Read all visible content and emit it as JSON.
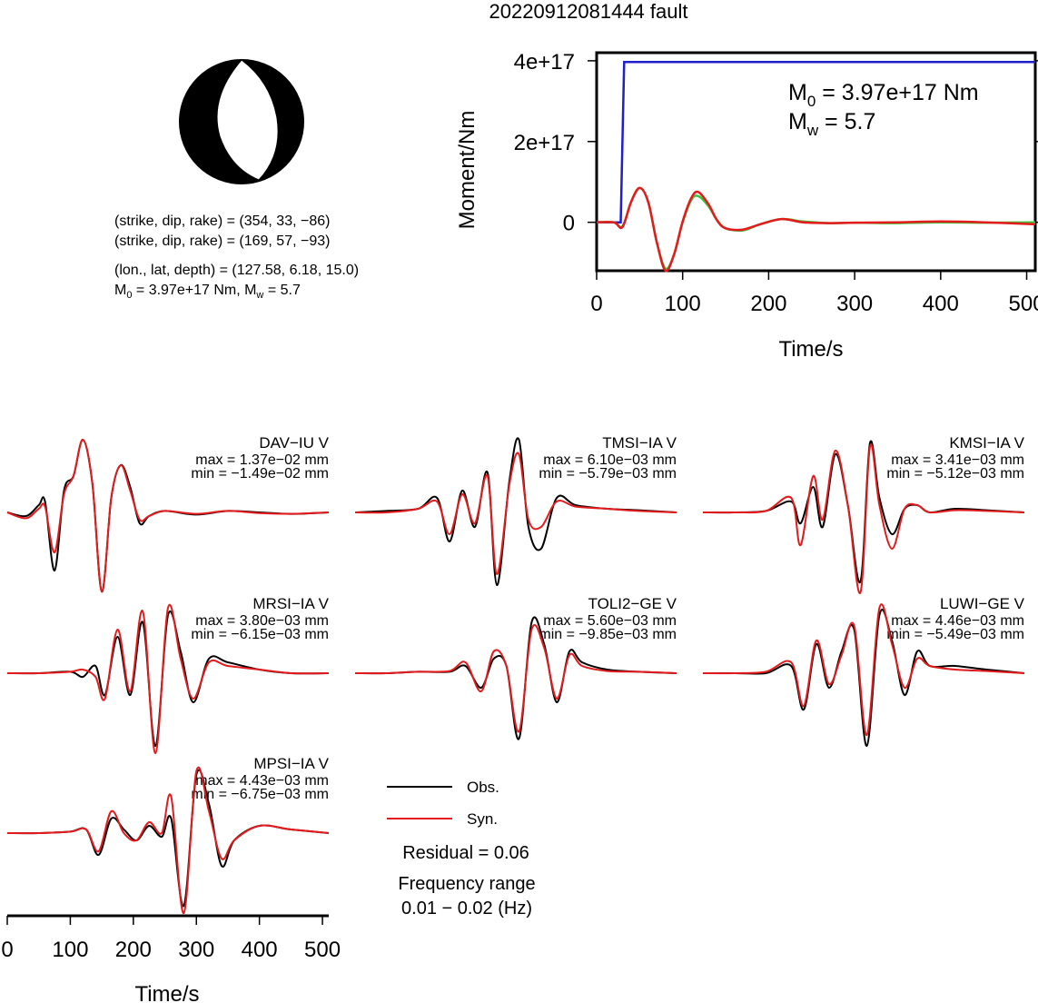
{
  "title": "20220912081444 fault",
  "colors": {
    "observed": "#000000",
    "synthetic": "#e41a1c",
    "moment_curve": "#1f1fcc",
    "moment_rate_green": "#3cc43c",
    "beachball": "#000000"
  },
  "focal_mechanism": {
    "plane1": "(strike, dip, rake) = (354, 33, −86)",
    "plane2": "(strike, dip, rake) = (169, 57, −93)",
    "location": "(lon., lat, depth) = (127.58, 6.18, 15.0)",
    "moment_prefix": "M",
    "moment_value": " = 3.97e+17 Nm, M",
    "moment_suffix": " = 5.7",
    "sub0": "0",
    "subw": "w"
  },
  "source_time_function": {
    "ylabel": "Moment/Nm",
    "xlabel": "Time/s",
    "m0_prefix": "M",
    "m0_sub": "0",
    "m0_text": " = 3.97e+17 Nm",
    "mw_prefix": "M",
    "mw_sub": "w",
    "mw_text": " = 5.7"
  },
  "waveforms_xlabel": "Time/s",
  "legend": {
    "obs_label": "Obs.",
    "syn_label": "Syn.",
    "residual": "Residual = 0.06",
    "freq_title": "Frequency range",
    "freq_range": "0.01 − 0.02 (Hz)"
  },
  "chart_data": [
    {
      "type": "line",
      "name": "source-time-function",
      "xlabel": "Time/s",
      "ylabel": "Moment/Nm",
      "xlim": [
        0,
        510
      ],
      "ylim": [
        -1.2e+17,
        4.2e+17
      ],
      "xticks": [
        0,
        100,
        200,
        300,
        400,
        500
      ],
      "yticks": [
        0,
        2e+17,
        4e+17
      ],
      "ytick_labels": [
        "0",
        "2e+17",
        "4e+17"
      ],
      "series": [
        {
          "x": [
            0,
            28,
            32,
            510
          ],
          "y": [
            0,
            0,
            3.97e+17,
            3.97e+17
          ]
        },
        {
          "x": [
            0,
            20,
            30,
            40,
            50,
            60,
            70,
            80,
            90,
            100,
            110,
            118,
            130,
            140,
            150,
            170,
            190,
            215,
            240,
            270,
            300,
            350,
            400,
            450,
            510
          ],
          "y": [
            0,
            0,
            -1e+16,
            5e+16,
            8.5e+16,
            5e+16,
            -5e+16,
            -1.15e+17,
            -8e+16,
            0.0,
            5.5e+16,
            6.5e+16,
            4e+16,
            5000000000000000.0,
            -1.5e+16,
            -2e+16,
            -5000000000000000.0,
            8000000000000000.0,
            2000000000000000.0,
            -2000000000000000.0,
            -1000000000000000.0,
            -2000000000000000.0,
            0.0,
            -1000000000000000.0,
            0.0
          ]
        },
        {
          "x": [
            0,
            20,
            30,
            40,
            50,
            60,
            70,
            80,
            90,
            100,
            110,
            118,
            130,
            140,
            150,
            170,
            190,
            215,
            240,
            270,
            300,
            350,
            400,
            450,
            510
          ],
          "y": [
            0,
            0,
            -1.2e+16,
            5e+16,
            8.5e+16,
            5e+16,
            -5e+16,
            -1.2e+17,
            -8e+16,
            2000000000000000.0,
            6e+16,
            7.5e+16,
            4.5e+16,
            5000000000000000.0,
            -1.5e+16,
            -1.8e+16,
            -5000000000000000.0,
            8000000000000000.0,
            0.0,
            -2000000000000000.0,
            -1000000000000000.0,
            0.0,
            2000000000000000.0,
            0.0,
            -5000000000000000.0
          ]
        }
      ]
    },
    {
      "type": "line",
      "name": "waveform-fits",
      "xlabel": "Time/s",
      "xlim": [
        0,
        510
      ],
      "xticks": [
        0,
        100,
        200,
        300,
        400,
        500
      ],
      "stations": [
        {
          "name": "DAV−IU V",
          "max": "max = 1.37e−02 mm",
          "min": "min = −1.49e−02 mm",
          "t": [
            0,
            30,
            50,
            60,
            75,
            90,
            105,
            120,
            135,
            150,
            165,
            180,
            195,
            210,
            225,
            250,
            300,
            350,
            400,
            450,
            510
          ],
          "obs": [
            0,
            -0.05,
            0.1,
            0.15,
            -0.8,
            0.3,
            0.5,
            1.0,
            0.4,
            -1.09,
            0.2,
            0.65,
            0.35,
            -0.15,
            -0.05,
            0.02,
            -0.03,
            0.02,
            0.0,
            -0.02,
            0.0
          ],
          "syn": [
            0,
            -0.08,
            0.05,
            0.08,
            -0.55,
            0.25,
            0.5,
            1.0,
            0.4,
            -1.09,
            0.2,
            0.65,
            0.3,
            -0.1,
            -0.05,
            0.02,
            -0.02,
            0.02,
            -0.01,
            -0.02,
            0.0
          ]
        },
        {
          "name": "TMSI−IA V",
          "max": "max = 6.10e−03 mm",
          "min": "min = −5.79e−03 mm",
          "t": [
            0,
            50,
            100,
            130,
            150,
            170,
            190,
            210,
            225,
            245,
            260,
            275,
            295,
            320,
            350,
            400,
            450,
            510
          ],
          "obs": [
            0,
            0.02,
            0.05,
            0.2,
            -0.4,
            0.3,
            -0.2,
            0.55,
            -1.0,
            0.45,
            1.0,
            -0.2,
            -0.5,
            0.2,
            0.1,
            0.05,
            0.03,
            0.0
          ],
          "syn": [
            0,
            0.0,
            0.05,
            0.15,
            -0.3,
            0.25,
            -0.15,
            0.5,
            -0.85,
            0.4,
            0.8,
            -0.1,
            -0.2,
            0.15,
            0.08,
            0.05,
            0.02,
            0.0
          ]
        },
        {
          "name": "KMSI−IA V",
          "max": "max = 3.41e−03 mm",
          "min": "min = −5.12e−03 mm",
          "t": [
            0,
            50,
            100,
            140,
            155,
            175,
            190,
            210,
            230,
            250,
            265,
            280,
            300,
            320,
            340,
            360,
            400,
            450,
            510
          ],
          "obs": [
            0,
            0.0,
            0.02,
            0.15,
            -0.15,
            0.35,
            -0.2,
            0.8,
            0.1,
            -0.95,
            0.95,
            0.2,
            -0.3,
            0.05,
            0.1,
            0.0,
            0.05,
            0.03,
            0.0
          ],
          "syn": [
            0,
            0.0,
            0.02,
            0.2,
            -0.45,
            0.5,
            -0.1,
            0.85,
            0.1,
            -1.1,
            0.9,
            0.1,
            -0.5,
            0.05,
            0.1,
            0.0,
            0.03,
            0.02,
            0.0
          ]
        },
        {
          "name": "MRSI−IA V",
          "max": "max = 3.80e−03 mm",
          "min": "min = −6.15e−03 mm",
          "t": [
            0,
            50,
            100,
            120,
            140,
            155,
            175,
            195,
            215,
            235,
            255,
            275,
            295,
            320,
            350,
            400,
            450,
            510
          ],
          "obs": [
            0,
            0.0,
            0.02,
            -0.05,
            0.1,
            -0.3,
            0.5,
            -0.3,
            0.7,
            -1.0,
            0.8,
            0.3,
            -0.4,
            0.2,
            0.15,
            0.05,
            0.0,
            0.0
          ],
          "syn": [
            0,
            0.0,
            0.02,
            0.05,
            -0.05,
            -0.35,
            0.6,
            -0.25,
            0.85,
            -1.1,
            0.9,
            0.2,
            -0.35,
            0.15,
            0.1,
            0.05,
            0.0,
            0.0
          ]
        },
        {
          "name": "TOLI2−GE V",
          "max": "max = 5.60e−03 mm",
          "min": "min = −9.85e−03 mm",
          "t": [
            0,
            50,
            100,
            150,
            175,
            200,
            220,
            240,
            260,
            280,
            300,
            320,
            340,
            360,
            400,
            450,
            510
          ],
          "obs": [
            0,
            0.0,
            0.02,
            0.02,
            0.1,
            -0.2,
            0.2,
            0.1,
            -0.9,
            0.7,
            0.4,
            -0.4,
            0.3,
            0.15,
            0.05,
            0.02,
            0.0
          ],
          "syn": [
            0,
            0.0,
            0.02,
            0.03,
            0.15,
            -0.25,
            0.3,
            0.1,
            -0.8,
            0.6,
            0.35,
            -0.35,
            0.25,
            0.1,
            0.03,
            0.02,
            0.0
          ]
        },
        {
          "name": "LUWI−GE V",
          "max": "max = 4.46e−03 mm",
          "min": "min = −5.49e−03 mm",
          "t": [
            0,
            50,
            100,
            140,
            160,
            180,
            200,
            220,
            240,
            260,
            280,
            300,
            320,
            340,
            360,
            400,
            450,
            510
          ],
          "obs": [
            0,
            0.0,
            0.0,
            0.1,
            -0.5,
            0.4,
            -0.2,
            0.3,
            0.6,
            -1.0,
            0.8,
            0.45,
            -0.3,
            0.3,
            0.1,
            0.1,
            0.05,
            0.0
          ],
          "syn": [
            0,
            0.0,
            0.02,
            0.15,
            -0.45,
            0.45,
            -0.15,
            0.25,
            0.65,
            -0.85,
            0.9,
            0.4,
            -0.2,
            0.2,
            0.1,
            0.05,
            0.03,
            0.0
          ]
        },
        {
          "name": "MPSI−IA V",
          "max": "max = 4.43e−03 mm",
          "min": "min = −6.75e−03 mm",
          "t": [
            0,
            50,
            100,
            125,
            145,
            165,
            185,
            205,
            225,
            245,
            260,
            280,
            300,
            320,
            340,
            360,
            400,
            450,
            510
          ],
          "obs": [
            0,
            0.0,
            0.02,
            0.05,
            -0.3,
            0.2,
            0.05,
            -0.1,
            0.1,
            -0.05,
            0.2,
            -1.0,
            0.8,
            0.4,
            -0.45,
            -0.1,
            0.1,
            0.05,
            0.0
          ],
          "syn": [
            0,
            0.0,
            0.02,
            0.05,
            -0.25,
            0.3,
            0.0,
            -0.1,
            0.15,
            0.0,
            0.5,
            -1.1,
            0.85,
            0.3,
            -0.35,
            -0.1,
            0.1,
            0.05,
            0.0
          ]
        }
      ]
    }
  ]
}
